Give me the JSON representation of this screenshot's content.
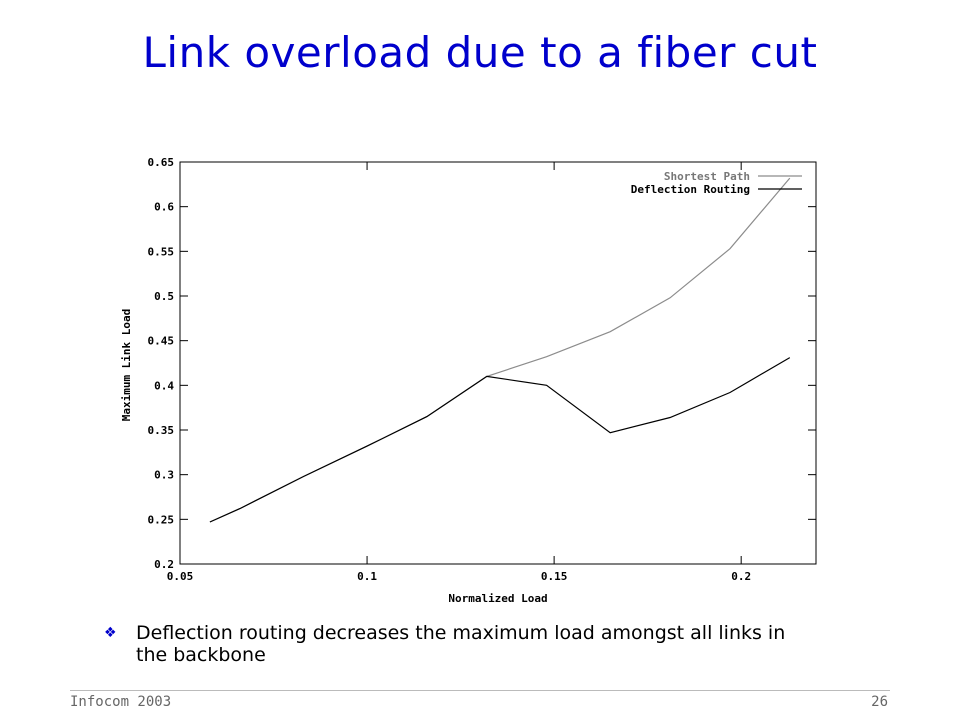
{
  "slide": {
    "title": "Link overload due to a fiber cut",
    "bullet": "Deflection routing decreases the maximum load amongst all links in the backbone",
    "bullet_icon": "diamond-bullet-icon"
  },
  "footer": {
    "left": "Infocom 2003",
    "right": "26"
  },
  "colors": {
    "title": "#0000cc",
    "shortest_path": "#8c8c8c",
    "deflection_routing": "#000000"
  },
  "chart_data": {
    "type": "line",
    "title": "",
    "xlabel": "Normalized Load",
    "ylabel": "Maximum Link Load",
    "xlim": [
      0.05,
      0.22
    ],
    "ylim": [
      0.2,
      0.65
    ],
    "xticks": [
      0.05,
      0.1,
      0.15,
      0.2
    ],
    "xtick_labels": [
      "0.05",
      "0.1",
      "0.15",
      "0.2"
    ],
    "yticks": [
      0.2,
      0.25,
      0.3,
      0.35,
      0.4,
      0.45,
      0.5,
      0.55,
      0.6,
      0.65
    ],
    "ytick_labels": [
      "0.2",
      "0.25",
      "0.3",
      "0.35",
      "0.4",
      "0.45",
      "0.5",
      "0.55",
      "0.6",
      "0.65"
    ],
    "grid": false,
    "legend_position": "top-right",
    "series": [
      {
        "name": "Shortest Path",
        "x": [
          0.058,
          0.066,
          0.083,
          0.1,
          0.116,
          0.132,
          0.148,
          0.165,
          0.181,
          0.197,
          0.213
        ],
        "y": [
          0.247,
          0.262,
          0.298,
          0.332,
          0.365,
          0.41,
          0.432,
          0.46,
          0.498,
          0.553,
          0.632
        ]
      },
      {
        "name": "Deflection Routing",
        "x": [
          0.058,
          0.066,
          0.083,
          0.1,
          0.116,
          0.132,
          0.148,
          0.165,
          0.181,
          0.197,
          0.213
        ],
        "y": [
          0.247,
          0.262,
          0.298,
          0.332,
          0.365,
          0.41,
          0.4,
          0.347,
          0.364,
          0.392,
          0.431
        ]
      }
    ]
  }
}
